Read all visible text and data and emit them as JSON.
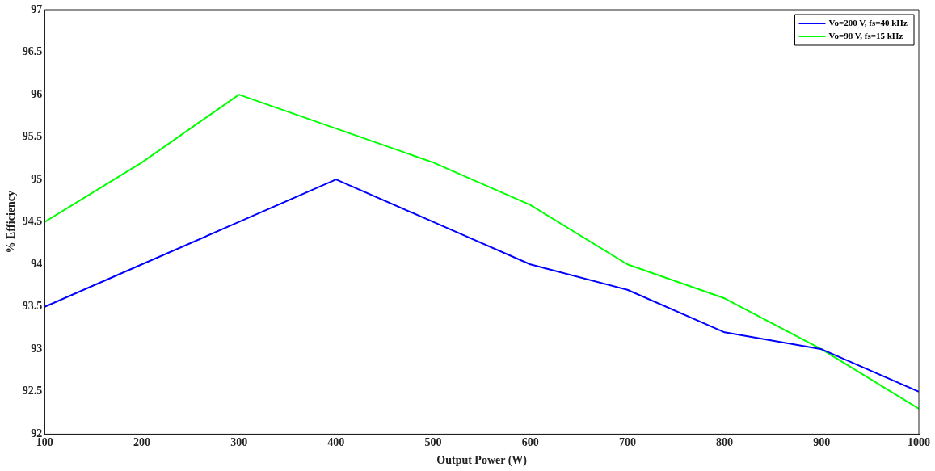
{
  "chart_data": {
    "type": "line",
    "xlabel": "Output Power (W)",
    "ylabel": "% Efficiency",
    "x": [
      100,
      200,
      300,
      400,
      500,
      600,
      700,
      800,
      900,
      1000
    ],
    "series": [
      {
        "name": "Vo=200 V, fs=40 kHz",
        "color": "#0000ff",
        "values": [
          93.5,
          94,
          94.5,
          95,
          94.5,
          94,
          93.7,
          93.2,
          93,
          92.5
        ]
      },
      {
        "name": "Vo=98 V, fs=15 kHz",
        "color": "#00ff00",
        "values": [
          94.5,
          95.2,
          96,
          95.6,
          95.2,
          94.7,
          94,
          93.6,
          93,
          92.3
        ]
      }
    ],
    "xlim": [
      100,
      1000
    ],
    "xticks": [
      100,
      200,
      300,
      400,
      500,
      600,
      700,
      800,
      900,
      1000
    ],
    "ylim": [
      92,
      97
    ],
    "yticks": [
      92,
      92.5,
      93,
      93.5,
      94,
      94.5,
      95,
      95.5,
      96,
      96.5,
      97
    ],
    "grid": false,
    "legend": "top right",
    "marker": "none",
    "line_style": "solid"
  }
}
